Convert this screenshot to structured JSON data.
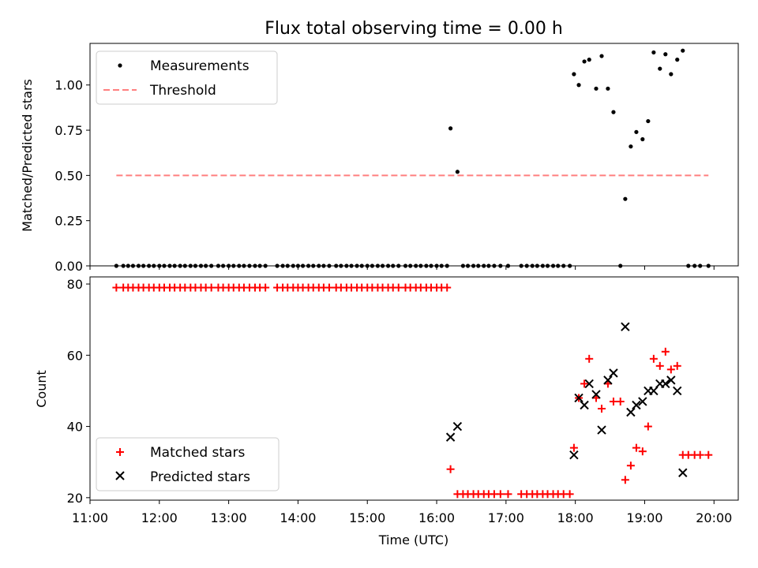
{
  "chart_data": [
    {
      "type": "scatter",
      "title": "Flux total observing time = 0.00 h",
      "ylabel": "Matched/Predicted stars",
      "ylim": [
        0,
        1.23
      ],
      "yticks": [
        "0.00",
        "0.25",
        "0.50",
        "0.75",
        "1.00"
      ],
      "ytick_values": [
        0,
        0.25,
        0.5,
        0.75,
        1.0
      ],
      "legend": {
        "placement": "top-left",
        "entries": [
          "Measurements",
          "Threshold"
        ]
      },
      "threshold": {
        "name": "Threshold",
        "value": 0.5,
        "x_start": 11.38,
        "x_end": 19.92,
        "color": "#ff7f7f"
      },
      "series": [
        {
          "name": "Measurements",
          "color": "#000000",
          "x": [
            11.38,
            11.48,
            11.55,
            11.62,
            11.7,
            11.77,
            11.85,
            11.92,
            12.0,
            12.07,
            12.15,
            12.22,
            12.3,
            12.37,
            12.45,
            12.52,
            12.6,
            12.67,
            12.75,
            12.85,
            12.92,
            13.0,
            13.07,
            13.15,
            13.22,
            13.3,
            13.38,
            13.45,
            13.53,
            13.7,
            13.78,
            13.85,
            13.93,
            14.0,
            14.07,
            14.15,
            14.22,
            14.3,
            14.37,
            14.45,
            14.55,
            14.62,
            14.7,
            14.77,
            14.85,
            14.92,
            15.0,
            15.07,
            15.15,
            15.22,
            15.3,
            15.37,
            15.45,
            15.55,
            15.62,
            15.7,
            15.77,
            15.85,
            15.92,
            16.0,
            16.07,
            16.15,
            16.2,
            16.3,
            16.38,
            16.45,
            16.53,
            16.6,
            16.68,
            16.75,
            16.83,
            16.92,
            17.03,
            17.22,
            17.3,
            17.38,
            17.45,
            17.53,
            17.6,
            17.68,
            17.75,
            17.83,
            17.92,
            17.98,
            18.05,
            18.13,
            18.2,
            18.3,
            18.38,
            18.47,
            18.55,
            18.65,
            18.72,
            18.8,
            18.88,
            18.97,
            19.05,
            19.13,
            19.22,
            19.3,
            19.38,
            19.47,
            19.55,
            19.63,
            19.72,
            19.8,
            19.92
          ],
          "y": [
            0,
            0,
            0,
            0,
            0,
            0,
            0,
            0,
            0,
            0,
            0,
            0,
            0,
            0,
            0,
            0,
            0,
            0,
            0,
            0,
            0,
            0,
            0,
            0,
            0,
            0,
            0,
            0,
            0,
            0,
            0,
            0,
            0,
            0,
            0,
            0,
            0,
            0,
            0,
            0,
            0,
            0,
            0,
            0,
            0,
            0,
            0,
            0,
            0,
            0,
            0,
            0,
            0,
            0,
            0,
            0,
            0,
            0,
            0,
            0,
            0,
            0,
            0.76,
            0.52,
            0,
            0,
            0,
            0,
            0,
            0,
            0,
            0,
            0,
            0,
            0,
            0,
            0,
            0,
            0,
            0,
            0,
            0,
            0,
            1.06,
            1.0,
            1.13,
            1.14,
            0.98,
            1.16,
            0.98,
            0.85,
            0,
            0.37,
            0.66,
            0.74,
            0.7,
            0.8,
            1.18,
            1.09,
            1.17,
            1.06,
            1.14,
            1.19,
            0,
            0,
            0,
            0
          ]
        }
      ]
    },
    {
      "type": "scatter",
      "xlabel": "Time (UTC)",
      "ylabel": "Count",
      "ylim": [
        19.3,
        82
      ],
      "yticks": [
        "20",
        "40",
        "60",
        "80"
      ],
      "ytick_values": [
        20,
        40,
        60,
        80
      ],
      "xlim": [
        11.0,
        20.35
      ],
      "xticks": [
        "11:00",
        "12:00",
        "13:00",
        "14:00",
        "15:00",
        "16:00",
        "17:00",
        "18:00",
        "19:00",
        "20:00"
      ],
      "xtick_values": [
        11,
        12,
        13,
        14,
        15,
        16,
        17,
        18,
        19,
        20
      ],
      "legend": {
        "placement": "bottom-left",
        "entries": [
          "Matched stars",
          "Predicted stars"
        ]
      },
      "series": [
        {
          "name": "Matched stars",
          "marker": "plus",
          "color": "#ff0000",
          "x": [
            11.38,
            11.48,
            11.55,
            11.62,
            11.7,
            11.77,
            11.85,
            11.92,
            12.0,
            12.07,
            12.15,
            12.22,
            12.3,
            12.37,
            12.45,
            12.52,
            12.6,
            12.67,
            12.75,
            12.85,
            12.92,
            13.0,
            13.07,
            13.15,
            13.22,
            13.3,
            13.38,
            13.45,
            13.53,
            13.7,
            13.78,
            13.85,
            13.93,
            14.0,
            14.07,
            14.15,
            14.22,
            14.3,
            14.37,
            14.45,
            14.55,
            14.62,
            14.7,
            14.77,
            14.85,
            14.92,
            15.0,
            15.07,
            15.15,
            15.22,
            15.3,
            15.37,
            15.45,
            15.55,
            15.62,
            15.7,
            15.77,
            15.85,
            15.92,
            16.0,
            16.07,
            16.15,
            16.2,
            16.3,
            16.38,
            16.45,
            16.53,
            16.6,
            16.68,
            16.75,
            16.83,
            16.92,
            17.03,
            17.22,
            17.3,
            17.38,
            17.45,
            17.53,
            17.6,
            17.68,
            17.75,
            17.83,
            17.92,
            17.98,
            18.05,
            18.13,
            18.2,
            18.3,
            18.38,
            18.47,
            18.55,
            18.65,
            18.72,
            18.8,
            18.88,
            18.97,
            19.05,
            19.13,
            19.22,
            19.3,
            19.38,
            19.47,
            19.55,
            19.63,
            19.72,
            19.8,
            19.92
          ],
          "y": [
            79,
            79,
            79,
            79,
            79,
            79,
            79,
            79,
            79,
            79,
            79,
            79,
            79,
            79,
            79,
            79,
            79,
            79,
            79,
            79,
            79,
            79,
            79,
            79,
            79,
            79,
            79,
            79,
            79,
            79,
            79,
            79,
            79,
            79,
            79,
            79,
            79,
            79,
            79,
            79,
            79,
            79,
            79,
            79,
            79,
            79,
            79,
            79,
            79,
            79,
            79,
            79,
            79,
            79,
            79,
            79,
            79,
            79,
            79,
            79,
            79,
            79,
            28,
            21,
            21,
            21,
            21,
            21,
            21,
            21,
            21,
            21,
            21,
            21,
            21,
            21,
            21,
            21,
            21,
            21,
            21,
            21,
            21,
            34,
            48,
            52,
            59,
            48,
            45,
            52,
            47,
            47,
            25,
            29,
            34,
            33,
            40,
            59,
            57,
            61,
            56,
            57,
            32,
            32,
            32,
            32,
            32
          ]
        },
        {
          "name": "Predicted stars",
          "marker": "x",
          "color": "#000000",
          "x": [
            16.2,
            16.3,
            17.98,
            18.05,
            18.13,
            18.2,
            18.3,
            18.38,
            18.47,
            18.55,
            18.72,
            18.8,
            18.88,
            18.97,
            19.05,
            19.13,
            19.22,
            19.3,
            19.38,
            19.47,
            19.55
          ],
          "y": [
            37,
            40,
            32,
            48,
            46,
            52,
            49,
            39,
            53,
            55,
            68,
            44,
            46,
            47,
            50,
            50,
            52,
            52,
            53,
            50,
            27
          ]
        }
      ]
    }
  ]
}
